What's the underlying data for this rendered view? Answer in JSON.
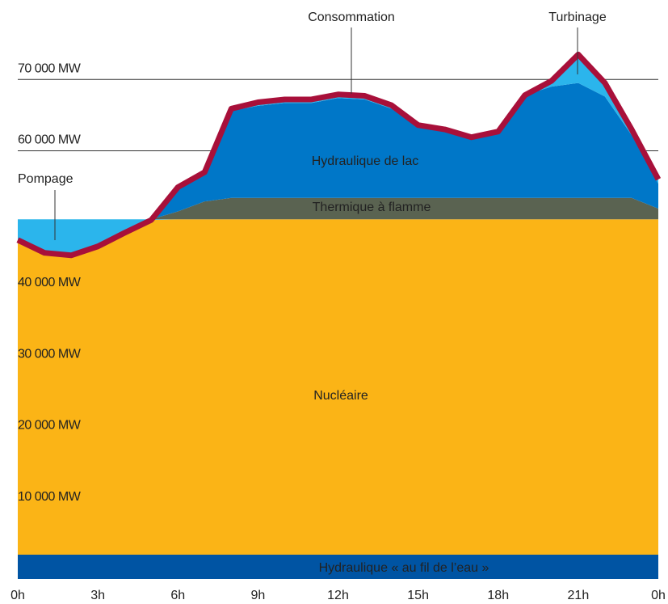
{
  "chart_data": {
    "type": "stacked-area",
    "x": [
      0,
      1,
      2,
      3,
      4,
      5,
      6,
      7,
      8,
      9,
      10,
      11,
      12,
      13,
      14,
      15,
      16,
      17,
      18,
      19,
      20,
      21,
      22,
      23,
      24
    ],
    "xlim": [
      0,
      24
    ],
    "xticks": [
      {
        "value": 0,
        "label": "0h"
      },
      {
        "value": 3,
        "label": "3h"
      },
      {
        "value": 6,
        "label": "6h"
      },
      {
        "value": 9,
        "label": "9h"
      },
      {
        "value": 12,
        "label": "12h"
      },
      {
        "value": 15,
        "label": "15h"
      },
      {
        "value": 18,
        "label": "18h"
      },
      {
        "value": 21,
        "label": "21h"
      },
      {
        "value": 24,
        "label": "0h"
      }
    ],
    "ylim": [
      0,
      80000
    ],
    "yticks": [
      {
        "value": 10000,
        "label": "10 000 MW"
      },
      {
        "value": 20000,
        "label": "20 000 MW"
      },
      {
        "value": 30000,
        "label": "30 000 MW"
      },
      {
        "value": 40000,
        "label": "40 000 MW"
      },
      {
        "value": 60000,
        "label": "60 000 MW"
      },
      {
        "value": 70000,
        "label": "70 000 MW"
      }
    ],
    "grid": true,
    "series": [
      {
        "name": "Hydraulique « au fil de l’eau »",
        "color": "#0054a3",
        "values": [
          3400,
          3400,
          3400,
          3400,
          3400,
          3400,
          3400,
          3400,
          3400,
          3400,
          3400,
          3400,
          3400,
          3400,
          3400,
          3400,
          3400,
          3400,
          3400,
          3400,
          3400,
          3400,
          3400,
          3400,
          3400
        ]
      },
      {
        "name": "Nucléaire",
        "color": "#fbb416",
        "values": [
          44100,
          42300,
          41950,
          43200,
          45100,
          46900,
          47000,
          47000,
          47000,
          47000,
          47000,
          47000,
          47000,
          47000,
          47000,
          47000,
          47000,
          47000,
          47000,
          47000,
          47000,
          47000,
          47000,
          47000,
          47000
        ]
      },
      {
        "name": "Pompage",
        "color": "#2bb5ec",
        "values": [
          2900,
          4700,
          5050,
          3800,
          1900,
          100,
          0,
          0,
          0,
          0,
          0,
          0,
          0,
          0,
          0,
          0,
          0,
          0,
          0,
          0,
          0,
          0,
          0,
          0,
          0
        ]
      },
      {
        "name": "Thermique à flamme",
        "color": "#5a6351",
        "values": [
          0,
          0,
          0,
          0,
          0,
          0,
          1100,
          2500,
          3000,
          3000,
          3000,
          3000,
          3000,
          3000,
          3000,
          3000,
          3000,
          3000,
          3000,
          3000,
          3000,
          3000,
          3000,
          3000,
          1500
        ]
      },
      {
        "name": "Hydraulique de lac",
        "color": "#0077c8",
        "values": [
          0,
          0,
          0,
          0,
          0,
          0,
          3400,
          4100,
          12200,
          12900,
          13300,
          13300,
          14000,
          13800,
          12500,
          9900,
          9400,
          8300,
          9100,
          14400,
          15600,
          16100,
          14200,
          8800,
          3500
        ]
      },
      {
        "name": "Turbinage",
        "color": "#2bb5ec",
        "values": [
          0,
          0,
          0,
          0,
          0,
          0,
          0,
          0,
          300,
          500,
          500,
          500,
          500,
          500,
          500,
          300,
          200,
          200,
          200,
          0,
          800,
          4000,
          1900,
          800,
          600
        ]
      }
    ],
    "line": {
      "name": "Consommation",
      "color": "#a8103a",
      "values": [
        47500,
        45700,
        45350,
        46600,
        48500,
        50300,
        54900,
        57000,
        65900,
        66800,
        67200,
        67200,
        67900,
        67700,
        66400,
        63600,
        63000,
        61900,
        62700,
        67800,
        69800,
        73500,
        69500,
        63000,
        56000
      ]
    }
  }
}
